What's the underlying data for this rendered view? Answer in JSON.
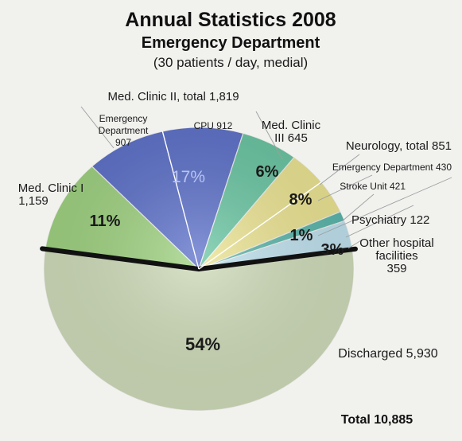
{
  "header": {
    "title": "Annual Statistics 2008",
    "subtitle": "Emergency Department",
    "note": "(30 patients / day, medial)"
  },
  "chart_data": {
    "type": "pie",
    "title": "Annual Statistics 2008",
    "subtitle": "Emergency Department",
    "note": "(30 patients / day, medial)",
    "total_label": "Total 10,885",
    "slices": [
      {
        "name": "Discharged",
        "value": 5930,
        "pct": "54%",
        "color": "#cfdcb9"
      },
      {
        "name": "Med. Clinic I",
        "value": 1159,
        "pct": "11%",
        "color": "#9ed27f"
      },
      {
        "name": "Med. Clinic II",
        "value": 1819,
        "pct": "17%",
        "color": "#5b6fc9"
      },
      {
        "name": "Med. Clinic III",
        "value": 645,
        "pct": "6%",
        "color": "#68c5a2"
      },
      {
        "name": "Neurology",
        "value": 851,
        "pct": "8%",
        "color": "#ece491"
      },
      {
        "name": "Psychiatry",
        "value": 122,
        "pct": "1%",
        "color": "#58b6ab"
      },
      {
        "name": "Other hospital facilities",
        "value": 359,
        "pct": "3%",
        "color": "#bfe2ef"
      }
    ],
    "sub_breakdowns": [
      {
        "parent": "Med. Clinic II",
        "items": [
          {
            "name": "Emergency Department",
            "value": 907
          },
          {
            "name": "CPU",
            "value": 912
          }
        ]
      },
      {
        "parent": "Neurology",
        "items": [
          {
            "name": "Emergency Department",
            "value": 430
          },
          {
            "name": "Stroke Unit",
            "value": 421
          }
        ]
      }
    ]
  },
  "labels": {
    "med_clinic_2": "Med. Clinic II, total 1,819",
    "ed_907_a": "Emergency",
    "ed_907_b": "Department",
    "ed_907_c": "907",
    "cpu_912": "CPU 912",
    "med_clinic_3_a": "Med. Clinic",
    "med_clinic_3_b": "III  645",
    "neurology": "Neurology, total 851",
    "ed_430": "Emergency Department 430",
    "stroke_421": "Stroke Unit 421",
    "psychiatry": "Psychiatry 122",
    "other_a": "Other hospital",
    "other_b": "facilities",
    "other_c": "359",
    "med_clinic_1_a": "Med. Clinic I",
    "med_clinic_1_b": "1,159",
    "discharged": "Discharged 5,930"
  }
}
